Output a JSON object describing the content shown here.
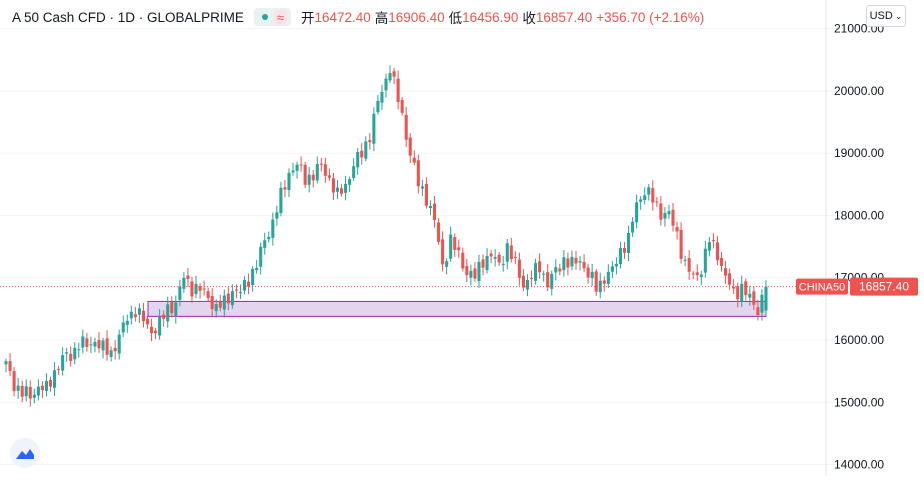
{
  "legend": {
    "symbol": "A 50 Cash CFD · 1D · GLOBALPRIME",
    "open_label": "开",
    "open": "16472.40",
    "high_label": "高",
    "high": "16906.40",
    "low_label": "低",
    "low": "16456.90",
    "close_label": "收",
    "close": "16857.40",
    "change": "+356.70 (+2.16%)"
  },
  "currency_selector": "USD",
  "price_tag": {
    "name": "CHINA50",
    "value": "16857.40"
  },
  "colors": {
    "up": "#26a69a",
    "down": "#ef5350",
    "zone_fill": "#e1d5ef",
    "zone_stroke": "#9c27b0",
    "grid": "#f0f3fa"
  },
  "chart_data": {
    "type": "candlestick",
    "ylim": [
      13800,
      21300
    ],
    "y_ticks": [
      14000,
      15000,
      16000,
      17000,
      18000,
      19000,
      20000,
      21000
    ],
    "y_tick_labels": [
      "14000.00",
      "15000.00",
      "16000.00",
      "17000.00",
      "18000.00",
      "19000.00",
      "20000.00",
      "21000.00"
    ],
    "last_price": 16857.4,
    "support_zone": {
      "low": 16380,
      "high": 16620
    },
    "close_path": [
      [
        0,
        15600
      ],
      [
        2,
        15300
      ],
      [
        4,
        15150
      ],
      [
        6,
        15100
      ],
      [
        8,
        15250
      ],
      [
        10,
        15200
      ],
      [
        12,
        15500
      ],
      [
        14,
        15700
      ],
      [
        16,
        15750
      ],
      [
        18,
        15950
      ],
      [
        20,
        15900
      ],
      [
        22,
        16000
      ],
      [
        24,
        15850
      ],
      [
        26,
        15800
      ],
      [
        28,
        16050
      ],
      [
        30,
        16350
      ],
      [
        32,
        16500
      ],
      [
        34,
        16300
      ],
      [
        36,
        16150
      ],
      [
        38,
        16250
      ],
      [
        40,
        16500
      ],
      [
        42,
        16600
      ],
      [
        44,
        17000
      ],
      [
        46,
        16850
      ],
      [
        48,
        16800
      ],
      [
        50,
        16700
      ],
      [
        52,
        16500
      ],
      [
        54,
        16600
      ],
      [
        56,
        16800
      ],
      [
        58,
        16750
      ],
      [
        60,
        17000
      ],
      [
        62,
        17200
      ],
      [
        64,
        17600
      ],
      [
        66,
        17900
      ],
      [
        68,
        18300
      ],
      [
        70,
        18700
      ],
      [
        72,
        18800
      ],
      [
        74,
        18600
      ],
      [
        76,
        18650
      ],
      [
        78,
        18800
      ],
      [
        80,
        18600
      ],
      [
        82,
        18300
      ],
      [
        84,
        18500
      ],
      [
        86,
        18800
      ],
      [
        88,
        19000
      ],
      [
        90,
        19300
      ],
      [
        92,
        19800
      ],
      [
        94,
        20200
      ],
      [
        95,
        20400
      ],
      [
        96,
        20100
      ],
      [
        98,
        19600
      ],
      [
        100,
        19000
      ],
      [
        102,
        18500
      ],
      [
        104,
        18300
      ],
      [
        106,
        17900
      ],
      [
        108,
        17200
      ],
      [
        110,
        17600
      ],
      [
        112,
        17350
      ],
      [
        114,
        17100
      ],
      [
        116,
        17000
      ],
      [
        118,
        17300
      ],
      [
        120,
        17350
      ],
      [
        122,
        17200
      ],
      [
        124,
        17500
      ],
      [
        126,
        17200
      ],
      [
        128,
        16900
      ],
      [
        130,
        17000
      ],
      [
        132,
        17200
      ],
      [
        134,
        16900
      ],
      [
        136,
        17100
      ],
      [
        138,
        17300
      ],
      [
        140,
        17200
      ],
      [
        142,
        17300
      ],
      [
        144,
        17050
      ],
      [
        146,
        16850
      ],
      [
        148,
        17000
      ],
      [
        150,
        17100
      ],
      [
        152,
        17450
      ],
      [
        154,
        17600
      ],
      [
        156,
        18200
      ],
      [
        158,
        18400
      ],
      [
        160,
        18250
      ],
      [
        162,
        18050
      ],
      [
        164,
        18000
      ],
      [
        166,
        17700
      ],
      [
        168,
        17200
      ],
      [
        170,
        17000
      ],
      [
        172,
        17150
      ],
      [
        174,
        17600
      ],
      [
        176,
        17400
      ],
      [
        178,
        17000
      ],
      [
        180,
        16750
      ],
      [
        182,
        16850
      ],
      [
        184,
        16650
      ],
      [
        186,
        16500
      ],
      [
        188,
        16857
      ]
    ]
  }
}
